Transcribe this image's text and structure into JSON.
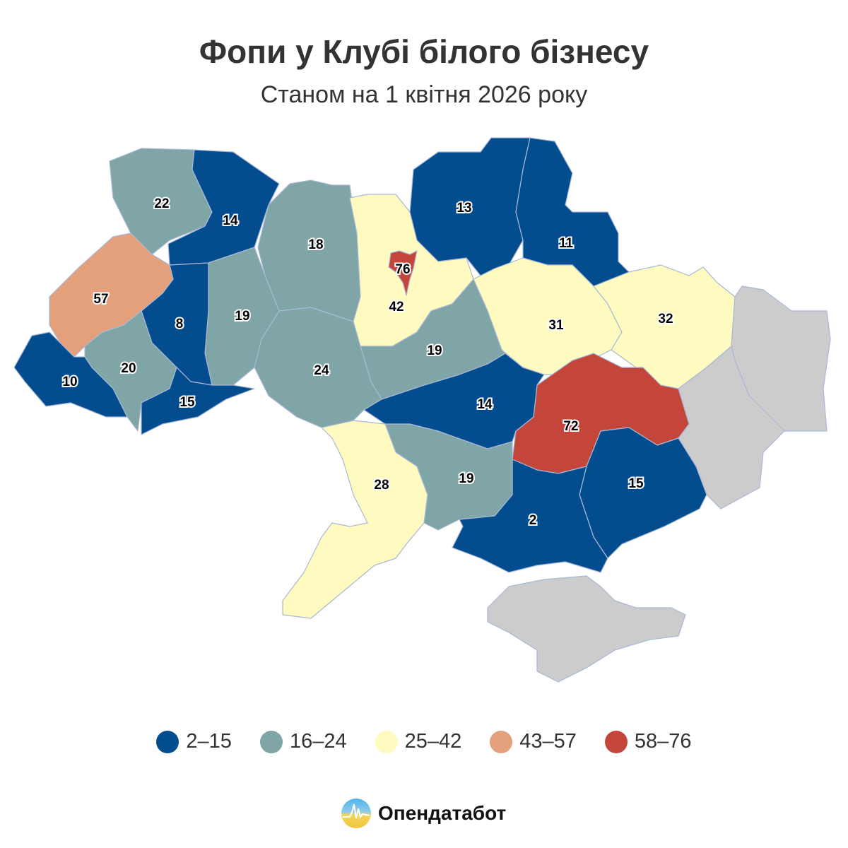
{
  "header": {
    "title": "Фопи у Клубі білого бізнесу",
    "subtitle": "Станом на 1 квітня 2026 року"
  },
  "colors": {
    "bin1": "#034d8f",
    "bin2": "#80a5a7",
    "bin3": "#fffac0",
    "bin4": "#e3a07b",
    "bin5": "#c4463a",
    "no_data": "#cccccc"
  },
  "legend": [
    {
      "label": "2–15",
      "color": "#034d8f"
    },
    {
      "label": "16–24",
      "color": "#80a5a7"
    },
    {
      "label": "25–42",
      "color": "#fffac0"
    },
    {
      "label": "43–57",
      "color": "#e3a07b"
    },
    {
      "label": "58–76",
      "color": "#c4463a"
    }
  ],
  "regions": {
    "volyn": "22",
    "rivne": "14",
    "zhytomyr": "18",
    "kyiv_oblast": "42",
    "kyiv_city": "76",
    "chernihiv": "13",
    "sumy": "11",
    "poltava": "31",
    "kharkiv": "32",
    "dnipro": "72",
    "zaporizhzhia": "15",
    "kherson": "2",
    "mykolaiv": "19",
    "odesa": "28",
    "kirovohrad": "14",
    "cherkasy": "19",
    "vinnytsia": "24",
    "khmelnytskyi": "19",
    "ternopil": "8",
    "lviv": "57",
    "ivano_frankivsk": "20",
    "zakarpattia": "10",
    "chernivtsi": "15"
  },
  "logo": {
    "text": "Опендатабот"
  }
}
